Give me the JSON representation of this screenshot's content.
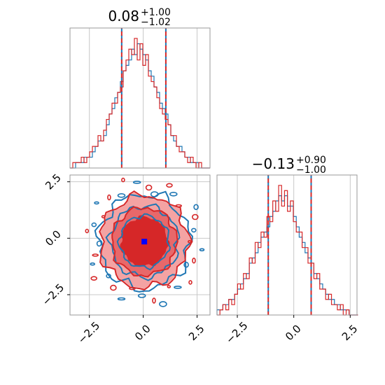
{
  "chart_data": [
    {
      "type": "histogram",
      "panel": "top-left",
      "title": {
        "median": "0.08",
        "plus": "+1.00",
        "minus": "−1.02"
      },
      "xlim": [
        -3.4,
        3.1
      ],
      "grid": true,
      "quantile_lines": [
        -1.0,
        1.05
      ],
      "bin_start": -3.4,
      "bin_width": 0.13,
      "series": [
        {
          "color": "#1f77b4",
          "values": [
            0,
            0,
            1,
            1,
            1,
            2,
            2,
            2,
            3,
            4,
            5,
            5,
            6,
            8,
            10,
            11,
            13,
            14,
            16,
            18,
            19,
            20,
            22,
            21,
            23,
            22,
            21,
            20,
            18,
            17,
            15,
            14,
            12,
            11,
            10,
            8,
            6,
            5,
            4,
            4,
            3,
            2,
            2,
            1,
            1,
            1,
            0,
            0,
            0,
            0
          ]
        },
        {
          "color": "#d62728",
          "values": [
            0,
            1,
            1,
            1,
            2,
            1,
            2,
            3,
            4,
            4,
            6,
            5,
            7,
            9,
            10,
            12,
            12,
            14,
            15,
            18,
            20,
            22,
            21,
            24,
            20,
            23,
            19,
            21,
            17,
            16,
            15,
            13,
            11,
            10,
            9,
            8,
            6,
            6,
            4,
            3,
            3,
            2,
            1,
            2,
            1,
            0,
            1,
            0,
            0,
            0
          ]
        }
      ]
    },
    {
      "type": "heatmap",
      "panel": "bottom-left",
      "xlim": [
        -3.4,
        3.1
      ],
      "ylim": [
        -3.4,
        2.8
      ],
      "grid": true,
      "xticks": [
        "−2.5",
        "0.0",
        "2.5"
      ],
      "yticks": [
        "2.5",
        "0.0",
        "−2.5"
      ],
      "marker": {
        "x": 0.05,
        "y": -0.15,
        "color": "#0000ff"
      },
      "contour_colors": [
        "#d62728",
        "#1f77b4",
        "#f4a3a3"
      ],
      "contour_sigma_levels": [
        0.5,
        1.0,
        1.5,
        2.0
      ]
    },
    {
      "type": "histogram",
      "panel": "bottom-right",
      "title": {
        "median": "−0.13",
        "plus": "+0.90",
        "minus": "−1.00"
      },
      "xlim": [
        -3.4,
        2.8
      ],
      "grid": true,
      "xticks": [
        "−2.5",
        "0.0",
        "2.5"
      ],
      "quantile_lines": [
        -1.13,
        0.77
      ],
      "bin_start": -3.4,
      "bin_width": 0.13,
      "series": [
        {
          "color": "#1f77b4",
          "values": [
            1,
            1,
            2,
            2,
            3,
            3,
            4,
            5,
            6,
            7,
            8,
            10,
            11,
            12,
            14,
            15,
            16,
            17,
            19,
            20,
            22,
            23,
            22,
            23,
            21,
            21,
            19,
            17,
            15,
            14,
            12,
            11,
            10,
            8,
            7,
            6,
            5,
            4,
            3,
            3,
            2,
            2,
            1,
            1,
            1,
            0,
            0,
            0
          ]
        },
        {
          "color": "#d62728",
          "values": [
            0,
            1,
            2,
            1,
            3,
            2,
            4,
            6,
            5,
            8,
            7,
            11,
            10,
            14,
            13,
            16,
            15,
            19,
            18,
            22,
            20,
            25,
            21,
            24,
            20,
            22,
            18,
            16,
            16,
            13,
            13,
            10,
            10,
            7,
            8,
            5,
            5,
            3,
            4,
            2,
            2,
            1,
            2,
            0,
            1,
            0,
            0,
            0
          ]
        }
      ]
    }
  ]
}
